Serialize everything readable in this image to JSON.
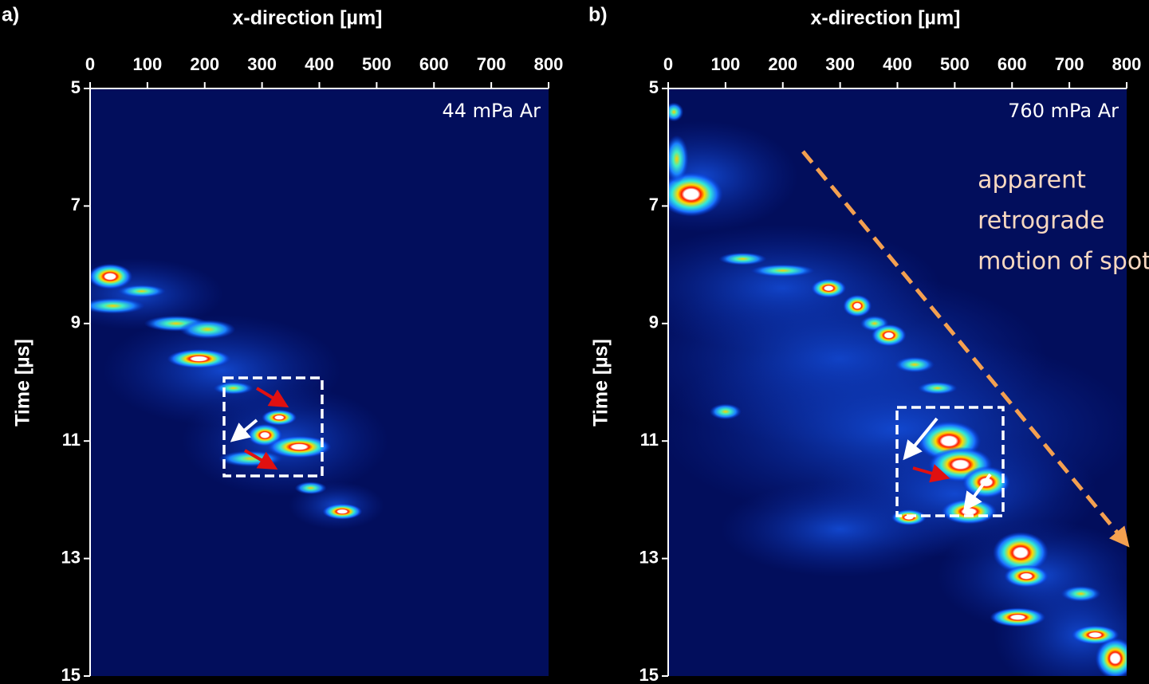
{
  "chart_data": [
    {
      "type": "streak",
      "panel_label": "a)",
      "xlabel": "x-direction [µm]",
      "ylabel": "Time [µs]",
      "xlim": [
        0,
        800
      ],
      "xticks": [
        0,
        100,
        200,
        300,
        400,
        500,
        600,
        700,
        800
      ],
      "ylim": [
        5,
        15
      ],
      "yticks": [
        5,
        7,
        9,
        11,
        13,
        15
      ],
      "y_direction": "down",
      "annotation": "44 mPa Ar"
    },
    {
      "type": "streak",
      "panel_label": "b)",
      "xlabel": "x-direction [µm]",
      "ylabel": "Time [µs]",
      "xlim": [
        0,
        800
      ],
      "xticks": [
        0,
        100,
        200,
        300,
        400,
        500,
        600,
        700,
        800
      ],
      "ylim": [
        5,
        15
      ],
      "yticks": [
        5,
        7,
        9,
        11,
        13,
        15
      ],
      "y_direction": "down",
      "annotation": "760 mPa Ar",
      "note_lines": [
        "apparent",
        "retrograde",
        "motion of spots"
      ]
    }
  ]
}
